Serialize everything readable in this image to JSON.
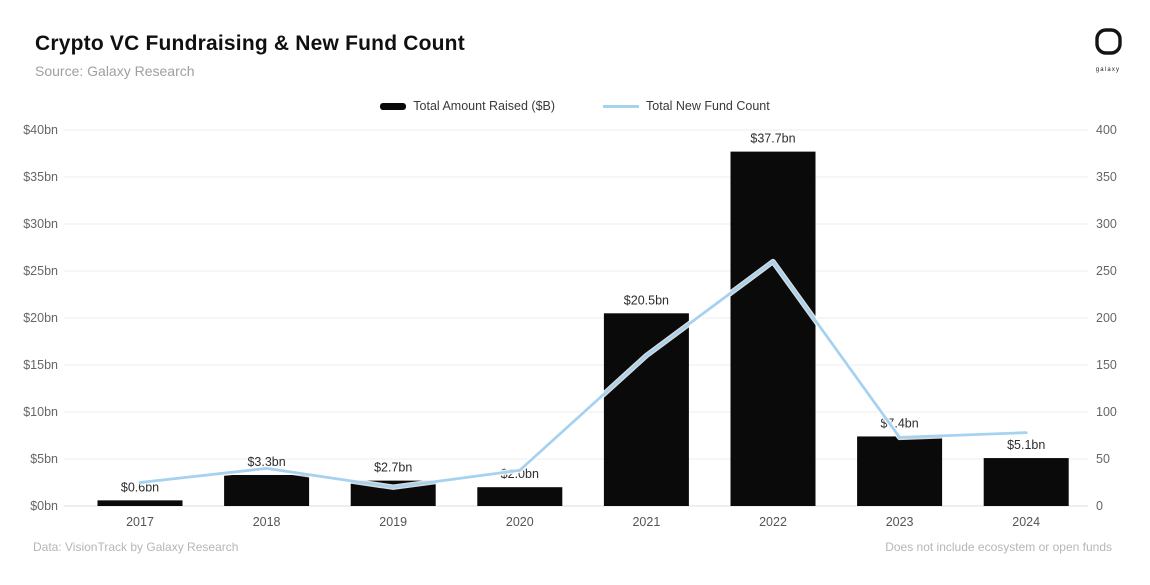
{
  "header": {
    "title": "Crypto VC Fundraising & New Fund Count",
    "source": "Source: Galaxy Research",
    "logo_text": "galaxy"
  },
  "legend": [
    {
      "label": "Total Amount Raised ($B)",
      "swatch": "bar",
      "color": "#0a0a0a"
    },
    {
      "label": "Total New Fund Count",
      "swatch": "line",
      "color": "#a6d2f0"
    }
  ],
  "footer": {
    "left": "Data: VisionTrack by Galaxy Research",
    "right": "Does not include ecosystem or open funds"
  },
  "chart_data": {
    "type": "bar",
    "subtype": "bar-with-line-overlay",
    "categories": [
      "2017",
      "2018",
      "2019",
      "2020",
      "2021",
      "2022",
      "2023",
      "2024"
    ],
    "series": [
      {
        "name": "Total Amount Raised ($B)",
        "type": "bar",
        "axis": "left",
        "color": "#0a0a0a",
        "values": [
          0.6,
          3.3,
          2.7,
          2.0,
          20.5,
          37.7,
          7.4,
          5.1
        ],
        "labels": [
          "$0.6bn",
          "$3.3bn",
          "$2.7bn",
          "$2.0bn",
          "$20.5bn",
          "$37.7bn",
          "$7.4bn",
          "$5.1bn"
        ]
      },
      {
        "name": "Total New Fund Count",
        "type": "line",
        "axis": "right",
        "color": "#a6d2f0",
        "values": [
          25,
          40,
          20,
          38,
          160,
          260,
          73,
          78
        ]
      }
    ],
    "left_axis": {
      "ticks": [
        "$0bn",
        "$5bn",
        "$10bn",
        "$15bn",
        "$20bn",
        "$25bn",
        "$30bn",
        "$35bn",
        "$40bn"
      ],
      "min": 0,
      "max": 40
    },
    "right_axis": {
      "ticks": [
        0,
        50,
        100,
        150,
        200,
        250,
        300,
        350,
        400
      ],
      "min": 0,
      "max": 400
    },
    "grid": true,
    "grid_color": "#ececec",
    "legend_position": "top-center",
    "title": "Crypto VC Fundraising & New Fund Count"
  }
}
